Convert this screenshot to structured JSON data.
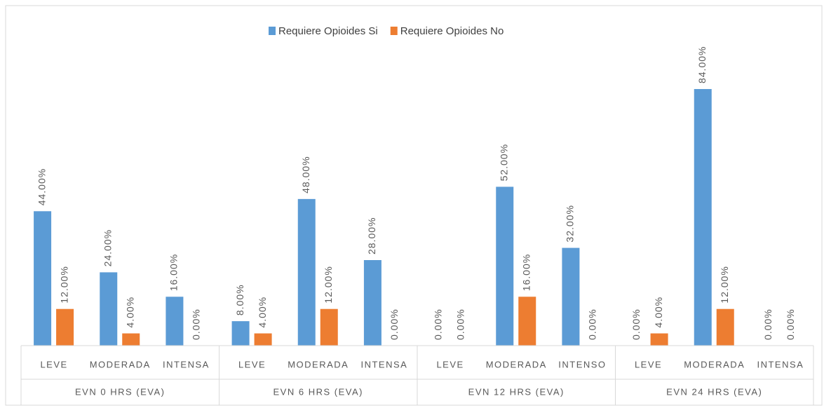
{
  "chart_data": {
    "type": "bar",
    "categories": [
      "LEVE",
      "MODERADA",
      "INTENSA",
      "LEVE",
      "MODERADA",
      "INTENSA",
      "LEVE",
      "MODERADA",
      "INTENSO",
      "LEVE",
      "MODERADA",
      "INTENSA"
    ],
    "groups": [
      "EVN 0 HRS (EVA)",
      "EVN 6 HRS (EVA)",
      "EVN 12 HRS (EVA)",
      "EVN 24 HRS (EVA)"
    ],
    "series": [
      {
        "name": "Requiere Opioides Si",
        "color": "#5b9bd5",
        "values": [
          44,
          24,
          16,
          8,
          48,
          28,
          0,
          52,
          32,
          0,
          84,
          0
        ],
        "value_labels": [
          "44.00%",
          "24.00%",
          "16.00%",
          "8.00%",
          "48.00%",
          "28.00%",
          "0.00%",
          "52.00%",
          "32.00%",
          "0.00%",
          "84.00%",
          "0.00%"
        ]
      },
      {
        "name": "Requiere Opioides No",
        "color": "#ed7d31",
        "values": [
          12,
          4,
          0,
          4,
          12,
          0,
          0,
          16,
          0,
          4,
          12,
          0
        ],
        "value_labels": [
          "12.00%",
          "4.00%",
          "0.00%",
          "4.00%",
          "12.00%",
          "0.00%",
          "0.00%",
          "16.00%",
          "0.00%",
          "4.00%",
          "12.00%",
          "0.00%"
        ]
      }
    ],
    "legend": "top"
  }
}
